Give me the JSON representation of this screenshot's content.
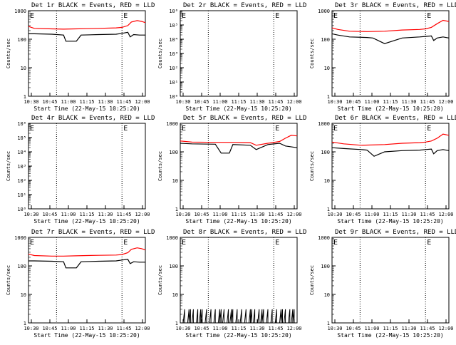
{
  "page_title": "RHESSI Detector Rates (multi-panel)",
  "common": {
    "x_label": "Start Time (22-May-15 10:25:20)",
    "y_label": "Counts/sec",
    "x_ticks": [
      "10:30",
      "10:45",
      "11:00",
      "11:15",
      "11:30",
      "11:45",
      "12:00"
    ],
    "colors": {
      "events": "#000000",
      "lld": "#ff0000"
    }
  },
  "chart_data": [
    {
      "id": "det1",
      "type": "line",
      "title": "Det 1r BLACK = Events, RED = LLD",
      "scale": "log",
      "ylim": [
        1,
        1000
      ],
      "y_ticks": [
        "1000",
        "100",
        "10",
        "1"
      ],
      "markers": [
        "E",
        "E"
      ],
      "series": [
        {
          "name": "Events",
          "x": [
            0,
            0.05,
            0.2,
            0.3,
            0.32,
            0.41,
            0.45,
            0.6,
            0.75,
            0.8,
            0.85,
            0.87,
            0.9,
            0.95,
            1
          ],
          "y": [
            155,
            155,
            150,
            140,
            85,
            85,
            140,
            145,
            150,
            160,
            175,
            120,
            145,
            140,
            140
          ]
        },
        {
          "name": "LLD",
          "x": [
            0,
            0.05,
            0.2,
            0.3,
            0.4,
            0.5,
            0.6,
            0.75,
            0.8,
            0.85,
            0.88,
            0.93,
            0.97,
            1
          ],
          "y": [
            280,
            240,
            230,
            225,
            230,
            235,
            240,
            250,
            260,
            300,
            400,
            450,
            420,
            380
          ]
        }
      ]
    },
    {
      "id": "det2",
      "type": "line",
      "title": "Det 2r BLACK = Events, RED = LLD",
      "scale": "log",
      "ylim": [
        1,
        1000000
      ],
      "y_ticks": [
        "10⁶",
        "10⁵",
        "10⁴",
        "10³",
        "10²",
        "10¹",
        "10⁰"
      ],
      "markers": [
        "E",
        "E"
      ],
      "series": []
    },
    {
      "id": "det3",
      "type": "line",
      "title": "Det 3r BLACK = Events, RED = LLD",
      "scale": "log",
      "ylim": [
        1,
        1000
      ],
      "y_ticks": [
        "1000",
        "100",
        "10",
        "1"
      ],
      "markers": [
        "E",
        "E"
      ],
      "series": [
        {
          "name": "Events",
          "x": [
            0,
            0.05,
            0.15,
            0.3,
            0.35,
            0.45,
            0.6,
            0.75,
            0.8,
            0.85,
            0.87,
            0.9,
            0.95,
            1
          ],
          "y": [
            155,
            140,
            120,
            115,
            110,
            70,
            110,
            120,
            125,
            130,
            90,
            110,
            120,
            110
          ]
        },
        {
          "name": "LLD",
          "x": [
            0,
            0.05,
            0.15,
            0.3,
            0.45,
            0.6,
            0.75,
            0.8,
            0.85,
            0.9,
            0.95,
            1
          ],
          "y": [
            250,
            220,
            190,
            185,
            190,
            210,
            220,
            230,
            260,
            350,
            460,
            420
          ]
        }
      ]
    },
    {
      "id": "det4",
      "type": "line",
      "title": "Det 4r BLACK = Events, RED = LLD",
      "scale": "log",
      "ylim": [
        1,
        1000000
      ],
      "y_ticks": [
        "10⁶",
        "10⁵",
        "10⁴",
        "10³",
        "10²",
        "10¹",
        "10⁰"
      ],
      "markers": [
        "E",
        "E"
      ],
      "series": []
    },
    {
      "id": "det5",
      "type": "line",
      "title": "Det 5r BLACK = Events, RED = LLD",
      "scale": "log",
      "ylim": [
        1,
        1000
      ],
      "y_ticks": [
        "1000",
        "100",
        "10",
        "1"
      ],
      "markers": [
        "E",
        "E"
      ],
      "series": [
        {
          "name": "Events",
          "x": [
            0,
            0.1,
            0.3,
            0.35,
            0.42,
            0.45,
            0.6,
            0.65,
            0.75,
            0.85,
            0.9,
            1
          ],
          "y": [
            200,
            190,
            185,
            90,
            90,
            180,
            170,
            120,
            180,
            200,
            160,
            140
          ]
        },
        {
          "name": "LLD",
          "x": [
            0,
            0.1,
            0.3,
            0.45,
            0.6,
            0.65,
            0.75,
            0.85,
            0.9,
            0.95,
            1
          ],
          "y": [
            240,
            220,
            215,
            215,
            210,
            170,
            200,
            230,
            300,
            380,
            360
          ]
        }
      ]
    },
    {
      "id": "det6",
      "type": "line",
      "title": "Det 6r BLACK = Events, RED = LLD",
      "scale": "log",
      "ylim": [
        1,
        1000
      ],
      "y_ticks": [
        "1000",
        "100",
        "10",
        "1"
      ],
      "markers": [
        "E",
        "E"
      ],
      "series": [
        {
          "name": "Events",
          "x": [
            0,
            0.1,
            0.25,
            0.3,
            0.36,
            0.45,
            0.6,
            0.75,
            0.8,
            0.85,
            0.87,
            0.9,
            0.95,
            1
          ],
          "y": [
            140,
            130,
            120,
            115,
            70,
            100,
            110,
            115,
            120,
            125,
            85,
            110,
            120,
            110
          ]
        },
        {
          "name": "LLD",
          "x": [
            0,
            0.1,
            0.25,
            0.45,
            0.6,
            0.75,
            0.8,
            0.85,
            0.9,
            0.95,
            1
          ],
          "y": [
            220,
            190,
            170,
            180,
            200,
            210,
            220,
            240,
            300,
            420,
            380
          ]
        }
      ]
    },
    {
      "id": "det7",
      "type": "line",
      "title": "Det 7r BLACK = Events, RED = LLD",
      "scale": "log",
      "ylim": [
        1,
        1000
      ],
      "y_ticks": [
        "1000",
        "100",
        "10",
        "1"
      ],
      "markers": [
        "E",
        "E"
      ],
      "series": [
        {
          "name": "Events",
          "x": [
            0,
            0.05,
            0.2,
            0.3,
            0.32,
            0.41,
            0.45,
            0.6,
            0.75,
            0.8,
            0.85,
            0.87,
            0.9,
            0.95,
            1
          ],
          "y": [
            150,
            150,
            145,
            140,
            85,
            85,
            140,
            145,
            150,
            160,
            170,
            120,
            140,
            135,
            135
          ]
        },
        {
          "name": "LLD",
          "x": [
            0,
            0.05,
            0.2,
            0.3,
            0.4,
            0.5,
            0.6,
            0.75,
            0.8,
            0.85,
            0.88,
            0.93,
            0.97,
            1
          ],
          "y": [
            260,
            230,
            220,
            220,
            225,
            230,
            235,
            240,
            250,
            290,
            380,
            430,
            400,
            360
          ]
        }
      ]
    },
    {
      "id": "det8",
      "type": "line",
      "title": "Det 8r BLACK = Events, RED = LLD",
      "scale": "log",
      "ylim": [
        1,
        1000
      ],
      "y_ticks": [
        "1000",
        "100",
        "10",
        "1"
      ],
      "markers": [
        "E",
        "E"
      ],
      "series": [
        {
          "name": "Events",
          "spiky": true,
          "x": [
            0,
            0.35,
            0.5,
            0.6,
            0.8,
            0.9,
            1
          ],
          "y": [
            2,
            2,
            2,
            2,
            2,
            2,
            2
          ]
        }
      ]
    },
    {
      "id": "det9",
      "type": "line",
      "title": "Det 9r BLACK = Events, RED = LLD",
      "scale": "log",
      "ylim": [
        1,
        1000
      ],
      "y_ticks": [
        "1000",
        "100",
        "10",
        "1"
      ],
      "markers": [
        "E",
        "E"
      ],
      "series": []
    }
  ]
}
